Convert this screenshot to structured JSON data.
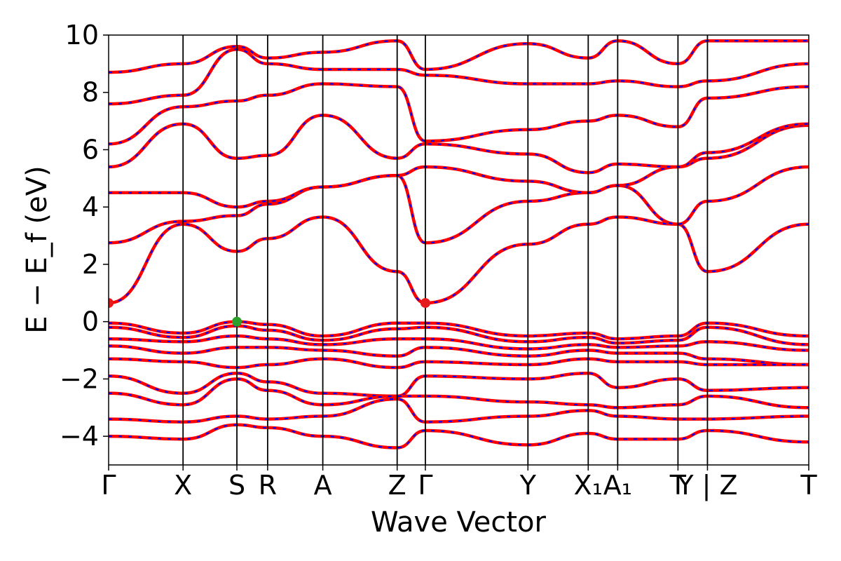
{
  "chart_data": {
    "type": "line",
    "title": "",
    "xlabel": "Wave Vector",
    "ylabel": "E − E_f (eV)",
    "ylim": [
      -5,
      10
    ],
    "yticks": [
      -4,
      -2,
      0,
      2,
      4,
      6,
      8,
      10
    ],
    "ytick_labels": [
      "−4",
      "−2",
      "0",
      "2",
      "4",
      "6",
      "8",
      "10"
    ],
    "x_domain": [
      0,
      1
    ],
    "kpoints": [
      {
        "label": "Γ",
        "x": 0.0
      },
      {
        "label": "X",
        "x": 0.1063
      },
      {
        "label": "S",
        "x": 0.1832
      },
      {
        "label": "R",
        "x": 0.2271
      },
      {
        "label": "A",
        "x": 0.3059
      },
      {
        "label": "Z",
        "x": 0.4121
      },
      {
        "label": "Γ",
        "x": 0.4524
      },
      {
        "label": "Y",
        "x": 0.5989
      },
      {
        "label": "X₁",
        "x": 0.685
      },
      {
        "label": "A₁",
        "x": 0.7271
      },
      {
        "label": "T",
        "x": 0.8132
      },
      {
        "label": "Y | Z",
        "x": 0.8553
      },
      {
        "label": "T",
        "x": 1.0
      }
    ],
    "special_points": [
      {
        "name": "CBM",
        "x": 0.0,
        "y": 0.65,
        "color": "#e41a1c"
      },
      {
        "name": "CBM",
        "x": 0.4524,
        "y": 0.65,
        "color": "#e41a1c"
      },
      {
        "name": "VBM",
        "x": 0.1832,
        "y": 0.0,
        "color": "#2ca02c"
      }
    ],
    "bands_conduction": [
      [
        0.65,
        3.4,
        2.45,
        2.9,
        3.65,
        1.75,
        0.65,
        2.7,
        3.4,
        3.65,
        3.4,
        1.75,
        3.4
      ],
      [
        2.75,
        3.5,
        3.7,
        4.1,
        4.7,
        5.1,
        2.75,
        4.2,
        4.5,
        4.75,
        3.4,
        4.2,
        5.4
      ],
      [
        4.5,
        4.5,
        4.0,
        4.2,
        4.7,
        5.1,
        5.4,
        4.9,
        4.5,
        4.75,
        5.4,
        5.7,
        6.85
      ],
      [
        5.4,
        6.9,
        5.7,
        5.8,
        7.2,
        5.7,
        6.2,
        5.85,
        5.2,
        5.5,
        5.4,
        5.9,
        6.9
      ],
      [
        6.2,
        7.5,
        7.7,
        7.9,
        8.3,
        8.2,
        6.3,
        6.7,
        7.0,
        7.2,
        6.8,
        7.8,
        8.2
      ],
      [
        7.6,
        7.9,
        9.5,
        9.0,
        8.8,
        8.8,
        8.6,
        8.3,
        8.3,
        8.4,
        8.2,
        8.4,
        9.0
      ],
      [
        8.7,
        9.0,
        9.6,
        9.2,
        9.4,
        9.8,
        8.8,
        9.7,
        9.2,
        9.8,
        9.0,
        9.8,
        9.8
      ]
    ],
    "bands_valence": [
      [
        -0.05,
        -0.4,
        0.0,
        -0.1,
        -0.5,
        -0.05,
        -0.05,
        -0.5,
        -0.4,
        -0.6,
        -0.5,
        -0.05,
        -0.5
      ],
      [
        -0.2,
        -0.55,
        -0.15,
        -0.3,
        -0.65,
        -0.25,
        -0.2,
        -0.7,
        -0.55,
        -0.75,
        -0.65,
        -0.2,
        -0.8
      ],
      [
        -0.6,
        -0.7,
        -0.5,
        -0.6,
        -0.8,
        -0.6,
        -0.6,
        -0.95,
        -0.8,
        -0.9,
        -0.85,
        -0.7,
        -1.0
      ],
      [
        -0.85,
        -1.1,
        -0.9,
        -0.9,
        -1.0,
        -1.2,
        -0.9,
        -1.2,
        -1.0,
        -1.1,
        -1.1,
        -1.3,
        -1.5
      ],
      [
        -1.3,
        -1.4,
        -1.6,
        -1.5,
        -1.3,
        -1.6,
        -1.4,
        -1.5,
        -1.3,
        -1.4,
        -1.4,
        -1.5,
        -1.5
      ],
      [
        -1.9,
        -2.5,
        -1.8,
        -2.1,
        -2.5,
        -2.6,
        -1.9,
        -2.0,
        -1.8,
        -2.3,
        -2.0,
        -2.4,
        -2.3
      ],
      [
        -2.5,
        -2.9,
        -2.0,
        -2.4,
        -2.9,
        -2.6,
        -2.6,
        -2.8,
        -2.9,
        -3.0,
        -2.9,
        -2.6,
        -3.0
      ],
      [
        -3.4,
        -3.5,
        -3.3,
        -3.4,
        -3.3,
        -2.7,
        -3.5,
        -3.3,
        -3.1,
        -3.3,
        -3.4,
        -3.4,
        -3.3
      ],
      [
        -4.0,
        -4.1,
        -3.6,
        -3.7,
        -4.0,
        -4.4,
        -3.8,
        -4.3,
        -3.9,
        -4.1,
        -4.1,
        -3.8,
        -4.2
      ]
    ],
    "colors": {
      "band_solid": "#ff0000",
      "band_dash": "#0000ff",
      "kpath_lines": "#000000",
      "axes": "#000000"
    },
    "grid": false,
    "legend": "none"
  }
}
